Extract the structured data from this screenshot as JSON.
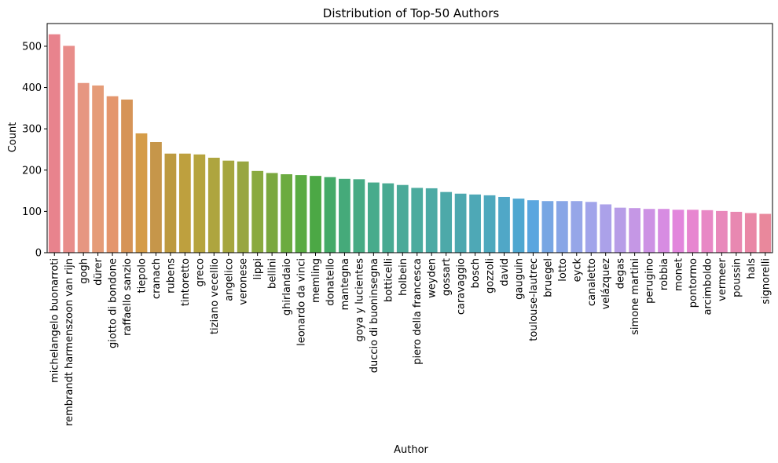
{
  "chart_data": {
    "type": "bar",
    "title": "Distribution of Top-50 Authors",
    "xlabel": "Author",
    "ylabel": "Count",
    "ylim": [
      0,
      555
    ],
    "yticks": [
      0,
      100,
      200,
      300,
      400,
      500
    ],
    "grid": false,
    "categories": [
      "michelangelo buonarroti",
      "rembrandt harmenszoon van rijn",
      "gogh",
      "dürer",
      "giotto di bondone",
      "raffaello sanzio",
      "tiepolo",
      "cranach",
      "rubens",
      "tintoretto",
      "greco",
      "tiziano vecellio",
      "angelico",
      "veronese",
      "lippi",
      "bellini",
      "ghirlandaio",
      "leonardo da vinci",
      "memling",
      "donatello",
      "mantegna",
      "goya y lucientes",
      "duccio di buoninsegna",
      "botticelli",
      "holbein",
      "piero della francesca",
      "weyden",
      "gossart",
      "caravaggio",
      "bosch",
      "gozzoli",
      "david",
      "gauguin",
      "toulouse-lautrec",
      "bruegel",
      "lotto",
      "eyck",
      "canaletto",
      "velázquez",
      "degas",
      "simone martini",
      "perugino",
      "robbia",
      "monet",
      "pontormo",
      "arcimboldo",
      "vermeer",
      "poussin",
      "hals",
      "signorelli"
    ],
    "values": [
      529,
      501,
      411,
      405,
      379,
      371,
      289,
      268,
      240,
      240,
      238,
      230,
      223,
      221,
      198,
      193,
      190,
      188,
      186,
      183,
      179,
      178,
      170,
      168,
      164,
      157,
      156,
      147,
      143,
      141,
      139,
      135,
      131,
      127,
      125,
      125,
      125,
      123,
      117,
      109,
      108,
      106,
      106,
      104,
      104,
      103,
      101,
      99,
      96,
      94
    ],
    "colors": [
      "#e8838d",
      "#e88d8a",
      "#e69681",
      "#e59c78",
      "#e4966d",
      "#d69457",
      "#d59c48",
      "#c6964a",
      "#bd9a40",
      "#bea03e",
      "#b6a43e",
      "#aea53f",
      "#a6a63f",
      "#98a641",
      "#8aaa3f",
      "#7ba83f",
      "#6cab40",
      "#5aab42",
      "#4ca845",
      "#44aa68",
      "#45aa7a",
      "#47ab84",
      "#48ab8c",
      "#49aa92",
      "#4baa99",
      "#4cab9e",
      "#4caaa4",
      "#4da9a9",
      "#4da8af",
      "#4ea8b6",
      "#4ea8bd",
      "#50a7c7",
      "#4fa7d0",
      "#5aa6df",
      "#77a6e3",
      "#88a6e6",
      "#96a6e8",
      "#a1a4ea",
      "#aba1e9",
      "#b79de7",
      "#c597e5",
      "#cd92e4",
      "#d78ce2",
      "#e286dc",
      "#e786d0",
      "#e888c5",
      "#e889bb",
      "#e888b1",
      "#e987a6",
      "#e9889c"
    ]
  }
}
